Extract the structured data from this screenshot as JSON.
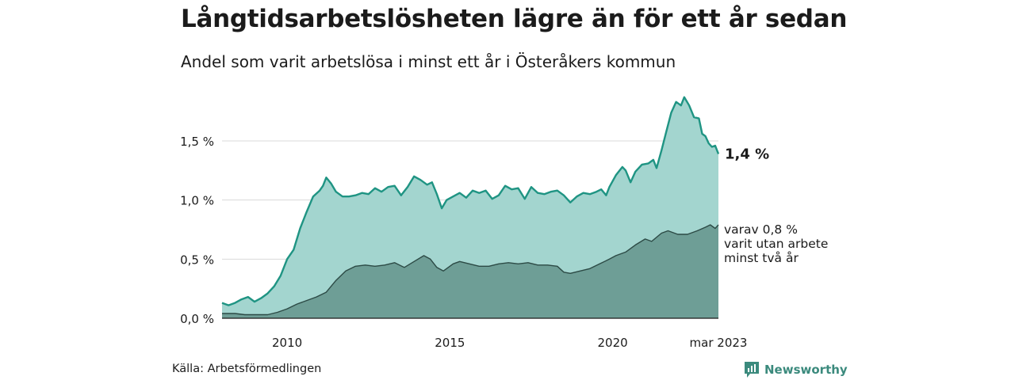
{
  "title": "Långtidsarbetslösheten lägre än för ett år sedan",
  "subtitle": "Andel som varit arbetslösa i minst ett år i Österåkers kommun",
  "source": "Källa: Arbetsförmedlingen",
  "brand": "Newsworthy",
  "colors": {
    "total_fill": "#a3d5cf",
    "total_line": "#1f9483",
    "sub_fill": "#6e9e96",
    "sub_line": "#2c4a45",
    "grid": "#d9d9d9",
    "brand": "#3b8a7d"
  },
  "chart_data": {
    "type": "area",
    "x_ticks": [
      "2010",
      "2015",
      "2020",
      "mar 2023"
    ],
    "y_ticks": [
      "0,0 %",
      "0,5 %",
      "1,0 %",
      "1,5 %"
    ],
    "ylim": [
      0,
      1.85
    ],
    "xlim": [
      2008.0,
      2023.25
    ],
    "grid": "horizontal",
    "end_labels": {
      "total": "1,4 %",
      "sub": [
        "varav 0,8 %",
        "varit utan arbete",
        "minst två år"
      ]
    },
    "series": [
      {
        "key": "total",
        "points": [
          [
            2008.0,
            0.13
          ],
          [
            2008.2,
            0.11
          ],
          [
            2008.4,
            0.13
          ],
          [
            2008.6,
            0.16
          ],
          [
            2008.8,
            0.18
          ],
          [
            2009.0,
            0.14
          ],
          [
            2009.2,
            0.17
          ],
          [
            2009.4,
            0.21
          ],
          [
            2009.6,
            0.27
          ],
          [
            2009.8,
            0.36
          ],
          [
            2010.0,
            0.5
          ],
          [
            2010.2,
            0.58
          ],
          [
            2010.4,
            0.76
          ],
          [
            2010.6,
            0.9
          ],
          [
            2010.8,
            1.03
          ],
          [
            2011.0,
            1.08
          ],
          [
            2011.1,
            1.12
          ],
          [
            2011.2,
            1.19
          ],
          [
            2011.35,
            1.14
          ],
          [
            2011.5,
            1.07
          ],
          [
            2011.7,
            1.03
          ],
          [
            2011.9,
            1.03
          ],
          [
            2012.1,
            1.04
          ],
          [
            2012.3,
            1.06
          ],
          [
            2012.5,
            1.05
          ],
          [
            2012.7,
            1.1
          ],
          [
            2012.9,
            1.07
          ],
          [
            2013.1,
            1.11
          ],
          [
            2013.3,
            1.12
          ],
          [
            2013.5,
            1.04
          ],
          [
            2013.7,
            1.11
          ],
          [
            2013.9,
            1.2
          ],
          [
            2014.1,
            1.17
          ],
          [
            2014.3,
            1.13
          ],
          [
            2014.45,
            1.15
          ],
          [
            2014.6,
            1.05
          ],
          [
            2014.75,
            0.93
          ],
          [
            2014.9,
            1.0
          ],
          [
            2015.1,
            1.03
          ],
          [
            2015.3,
            1.06
          ],
          [
            2015.5,
            1.02
          ],
          [
            2015.7,
            1.08
          ],
          [
            2015.9,
            1.06
          ],
          [
            2016.1,
            1.08
          ],
          [
            2016.3,
            1.01
          ],
          [
            2016.5,
            1.04
          ],
          [
            2016.7,
            1.12
          ],
          [
            2016.9,
            1.09
          ],
          [
            2017.1,
            1.1
          ],
          [
            2017.3,
            1.01
          ],
          [
            2017.5,
            1.11
          ],
          [
            2017.7,
            1.06
          ],
          [
            2017.9,
            1.05
          ],
          [
            2018.1,
            1.07
          ],
          [
            2018.3,
            1.08
          ],
          [
            2018.5,
            1.04
          ],
          [
            2018.7,
            0.98
          ],
          [
            2018.9,
            1.03
          ],
          [
            2019.1,
            1.06
          ],
          [
            2019.3,
            1.05
          ],
          [
            2019.5,
            1.07
          ],
          [
            2019.65,
            1.09
          ],
          [
            2019.8,
            1.04
          ],
          [
            2019.9,
            1.11
          ],
          [
            2020.1,
            1.21
          ],
          [
            2020.3,
            1.28
          ],
          [
            2020.4,
            1.25
          ],
          [
            2020.55,
            1.15
          ],
          [
            2020.7,
            1.24
          ],
          [
            2020.9,
            1.3
          ],
          [
            2021.1,
            1.31
          ],
          [
            2021.25,
            1.34
          ],
          [
            2021.35,
            1.27
          ],
          [
            2021.5,
            1.42
          ],
          [
            2021.65,
            1.58
          ],
          [
            2021.8,
            1.74
          ],
          [
            2021.95,
            1.83
          ],
          [
            2022.1,
            1.8
          ],
          [
            2022.2,
            1.87
          ],
          [
            2022.35,
            1.8
          ],
          [
            2022.5,
            1.7
          ],
          [
            2022.65,
            1.69
          ],
          [
            2022.75,
            1.56
          ],
          [
            2022.85,
            1.54
          ],
          [
            2022.95,
            1.48
          ],
          [
            2023.05,
            1.45
          ],
          [
            2023.15,
            1.46
          ],
          [
            2023.25,
            1.39
          ]
        ]
      },
      {
        "key": "sub",
        "points": [
          [
            2008.0,
            0.04
          ],
          [
            2008.4,
            0.04
          ],
          [
            2008.7,
            0.03
          ],
          [
            2009.0,
            0.03
          ],
          [
            2009.4,
            0.03
          ],
          [
            2009.7,
            0.05
          ],
          [
            2010.0,
            0.08
          ],
          [
            2010.3,
            0.12
          ],
          [
            2010.6,
            0.15
          ],
          [
            2010.9,
            0.18
          ],
          [
            2011.2,
            0.22
          ],
          [
            2011.5,
            0.32
          ],
          [
            2011.8,
            0.4
          ],
          [
            2012.1,
            0.44
          ],
          [
            2012.4,
            0.45
          ],
          [
            2012.7,
            0.44
          ],
          [
            2013.0,
            0.45
          ],
          [
            2013.3,
            0.47
          ],
          [
            2013.6,
            0.43
          ],
          [
            2013.9,
            0.48
          ],
          [
            2014.2,
            0.53
          ],
          [
            2014.4,
            0.5
          ],
          [
            2014.6,
            0.43
          ],
          [
            2014.8,
            0.4
          ],
          [
            2015.1,
            0.46
          ],
          [
            2015.3,
            0.48
          ],
          [
            2015.6,
            0.46
          ],
          [
            2015.9,
            0.44
          ],
          [
            2016.2,
            0.44
          ],
          [
            2016.5,
            0.46
          ],
          [
            2016.8,
            0.47
          ],
          [
            2017.1,
            0.46
          ],
          [
            2017.4,
            0.47
          ],
          [
            2017.7,
            0.45
          ],
          [
            2018.0,
            0.45
          ],
          [
            2018.3,
            0.44
          ],
          [
            2018.5,
            0.39
          ],
          [
            2018.7,
            0.38
          ],
          [
            2019.0,
            0.4
          ],
          [
            2019.3,
            0.42
          ],
          [
            2019.6,
            0.46
          ],
          [
            2019.9,
            0.5
          ],
          [
            2020.1,
            0.53
          ],
          [
            2020.4,
            0.56
          ],
          [
            2020.7,
            0.62
          ],
          [
            2021.0,
            0.67
          ],
          [
            2021.2,
            0.65
          ],
          [
            2021.5,
            0.72
          ],
          [
            2021.7,
            0.74
          ],
          [
            2022.0,
            0.71
          ],
          [
            2022.3,
            0.71
          ],
          [
            2022.6,
            0.74
          ],
          [
            2022.85,
            0.77
          ],
          [
            2023.0,
            0.79
          ],
          [
            2023.15,
            0.76
          ],
          [
            2023.25,
            0.79
          ]
        ]
      }
    ]
  }
}
